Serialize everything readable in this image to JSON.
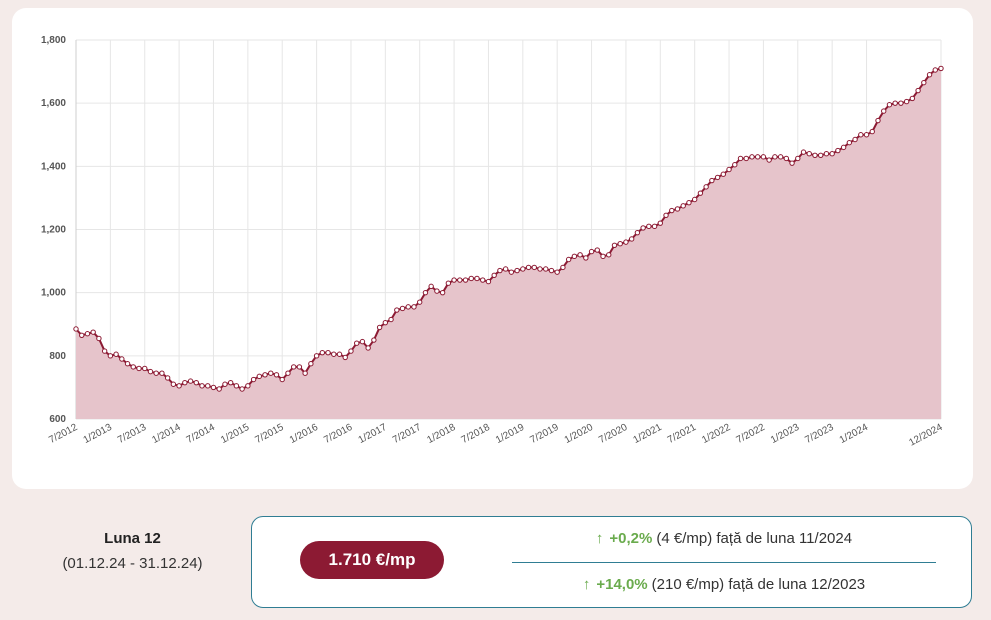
{
  "chart_data": {
    "type": "area",
    "y_ticks": [
      "600",
      "800",
      "1,000",
      "1,200",
      "1,400",
      "1,600",
      "1,800"
    ],
    "ylim": [
      600,
      1800
    ],
    "x_tick_labels": [
      "7/2012",
      "1/2013",
      "7/2013",
      "1/2014",
      "7/2014",
      "1/2015",
      "7/2015",
      "1/2016",
      "7/2016",
      "1/2017",
      "7/2017",
      "1/2018",
      "7/2018",
      "1/2019",
      "7/2019",
      "1/2020",
      "7/2020",
      "1/2021",
      "7/2021",
      "1/2022",
      "7/2022",
      "1/2023",
      "7/2023",
      "1/2024",
      "12/2024"
    ],
    "x_start": "7/2012",
    "x_end": "12/2024",
    "series": [
      {
        "color": "#8c1a33",
        "fill": "#e6c4cb",
        "values": [
          885,
          865,
          870,
          875,
          855,
          815,
          800,
          805,
          790,
          775,
          765,
          760,
          760,
          750,
          745,
          745,
          730,
          710,
          705,
          715,
          720,
          715,
          705,
          705,
          700,
          695,
          710,
          715,
          705,
          695,
          705,
          725,
          735,
          740,
          745,
          740,
          725,
          745,
          765,
          765,
          745,
          775,
          800,
          810,
          810,
          805,
          805,
          795,
          815,
          840,
          845,
          825,
          850,
          890,
          905,
          915,
          945,
          950,
          955,
          955,
          970,
          1000,
          1020,
          1005,
          1000,
          1030,
          1040,
          1040,
          1040,
          1045,
          1045,
          1040,
          1035,
          1055,
          1070,
          1075,
          1065,
          1070,
          1075,
          1080,
          1080,
          1075,
          1075,
          1070,
          1065,
          1080,
          1105,
          1115,
          1120,
          1110,
          1130,
          1135,
          1115,
          1120,
          1150,
          1155,
          1160,
          1170,
          1190,
          1205,
          1210,
          1210,
          1220,
          1245,
          1260,
          1265,
          1275,
          1285,
          1295,
          1315,
          1335,
          1355,
          1365,
          1375,
          1390,
          1405,
          1425,
          1425,
          1430,
          1430,
          1430,
          1420,
          1430,
          1430,
          1425,
          1410,
          1425,
          1445,
          1440,
          1435,
          1435,
          1440,
          1440,
          1450,
          1460,
          1475,
          1485,
          1500,
          1500,
          1510,
          1545,
          1575,
          1595,
          1600,
          1600,
          1605,
          1615,
          1640,
          1665,
          1690,
          1705,
          1710
        ]
      }
    ]
  },
  "period": {
    "title": "Luna 12",
    "range": "(01.12.24 - 31.12.24)"
  },
  "summary": {
    "price": "1.710 €/mp",
    "month_change": {
      "arrow": "↑",
      "pct": "+0,2%",
      "abs": "(4 €/mp)",
      "text": "față de luna 11/2024"
    },
    "year_change": {
      "arrow": "↑",
      "pct": "+14,0%",
      "abs": "(210 €/mp)",
      "text": "față de luna 12/2023"
    }
  }
}
